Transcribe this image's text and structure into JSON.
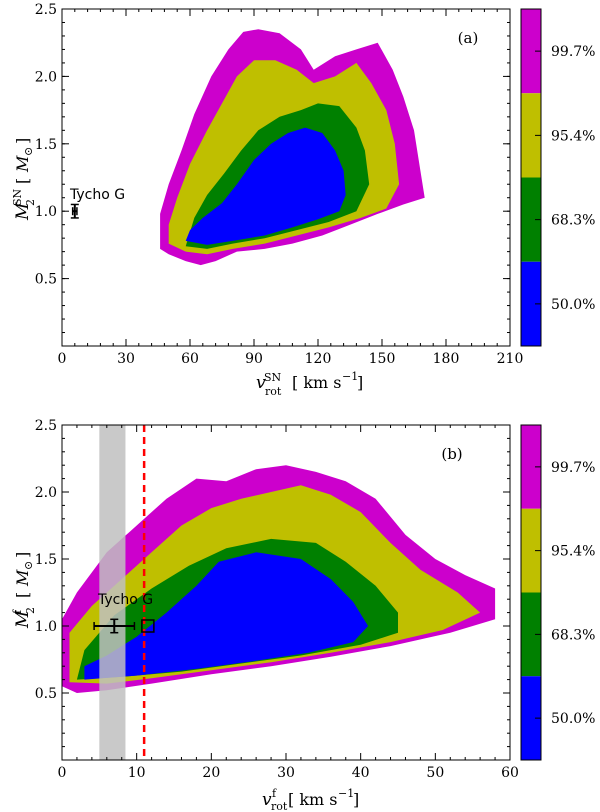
{
  "colors": {
    "c50": "#0000ff",
    "c68": "#008000",
    "c95": "#bfbf00",
    "c99": "#cc00cc",
    "marker": "#000000",
    "band": "#c0c0c0",
    "dashed": "#ff0000"
  },
  "chart_data": [
    {
      "type": "heatmap",
      "panel_label": "(a)",
      "xlabel": "v_rot^SN [ km s^-1 ]",
      "ylabel": "M_2^SN [ M_⊙ ]",
      "xlim": [
        0,
        210
      ],
      "ylim": [
        0,
        2.5
      ],
      "xticks": [
        "0",
        "30",
        "60",
        "90",
        "120",
        "150",
        "180",
        "210"
      ],
      "yticks": [
        "0.5",
        "1.0",
        "1.5",
        "2.0",
        "2.5"
      ],
      "colorbar": [
        "50.0%",
        "68.3%",
        "95.4%",
        "99.7%"
      ],
      "regions": {
        "99.7%": [
          [
            46,
            0.72
          ],
          [
            50,
            0.68
          ],
          [
            58,
            0.63
          ],
          [
            65,
            0.6
          ],
          [
            72,
            0.63
          ],
          [
            82,
            0.7
          ],
          [
            95,
            0.72
          ],
          [
            108,
            0.76
          ],
          [
            122,
            0.82
          ],
          [
            135,
            0.9
          ],
          [
            148,
            0.98
          ],
          [
            160,
            1.05
          ],
          [
            170,
            1.1
          ],
          [
            168,
            1.3
          ],
          [
            165,
            1.6
          ],
          [
            160,
            1.85
          ],
          [
            155,
            2.05
          ],
          [
            148,
            2.25
          ],
          [
            138,
            2.2
          ],
          [
            128,
            2.15
          ],
          [
            118,
            2.05
          ],
          [
            112,
            2.2
          ],
          [
            102,
            2.32
          ],
          [
            92,
            2.35
          ],
          [
            85,
            2.33
          ],
          [
            78,
            2.2
          ],
          [
            70,
            2.0
          ],
          [
            62,
            1.72
          ],
          [
            56,
            1.45
          ],
          [
            50,
            1.2
          ],
          [
            46,
            0.98
          ]
        ],
        "95.4%": [
          [
            50,
            0.76
          ],
          [
            58,
            0.7
          ],
          [
            68,
            0.68
          ],
          [
            80,
            0.72
          ],
          [
            95,
            0.76
          ],
          [
            110,
            0.82
          ],
          [
            125,
            0.88
          ],
          [
            140,
            0.95
          ],
          [
            152,
            1.02
          ],
          [
            158,
            1.2
          ],
          [
            156,
            1.5
          ],
          [
            152,
            1.75
          ],
          [
            145,
            1.95
          ],
          [
            138,
            2.1
          ],
          [
            128,
            2.0
          ],
          [
            118,
            1.95
          ],
          [
            110,
            2.05
          ],
          [
            100,
            2.12
          ],
          [
            90,
            2.12
          ],
          [
            82,
            2.0
          ],
          [
            75,
            1.8
          ],
          [
            68,
            1.6
          ],
          [
            60,
            1.35
          ],
          [
            54,
            1.1
          ],
          [
            50,
            0.9
          ]
        ],
        "68.3%": [
          [
            58,
            0.74
          ],
          [
            68,
            0.72
          ],
          [
            80,
            0.76
          ],
          [
            95,
            0.8
          ],
          [
            110,
            0.86
          ],
          [
            125,
            0.92
          ],
          [
            138,
            1.0
          ],
          [
            144,
            1.2
          ],
          [
            142,
            1.45
          ],
          [
            138,
            1.62
          ],
          [
            130,
            1.78
          ],
          [
            120,
            1.8
          ],
          [
            112,
            1.75
          ],
          [
            102,
            1.7
          ],
          [
            92,
            1.6
          ],
          [
            84,
            1.45
          ],
          [
            76,
            1.28
          ],
          [
            68,
            1.12
          ],
          [
            62,
            0.95
          ]
        ],
        "50.0%": [
          [
            58,
            0.78
          ],
          [
            68,
            0.75
          ],
          [
            80,
            0.78
          ],
          [
            95,
            0.82
          ],
          [
            108,
            0.88
          ],
          [
            120,
            0.94
          ],
          [
            130,
            1.0
          ],
          [
            133,
            1.12
          ],
          [
            132,
            1.3
          ],
          [
            128,
            1.45
          ],
          [
            122,
            1.58
          ],
          [
            114,
            1.62
          ],
          [
            106,
            1.58
          ],
          [
            98,
            1.5
          ],
          [
            90,
            1.38
          ],
          [
            82,
            1.2
          ],
          [
            75,
            1.06
          ],
          [
            66,
            0.95
          ],
          [
            60,
            0.86
          ]
        ]
      },
      "marker": {
        "label": "Tycho G",
        "x": 6,
        "y": 1.0,
        "xerr": 1,
        "yerr": 0.05
      }
    },
    {
      "type": "heatmap",
      "panel_label": "(b)",
      "xlabel": "v_rot^f [ km s^-1 ]",
      "ylabel": "M_2^f [ M_⊙ ]",
      "xlim": [
        0,
        60
      ],
      "ylim": [
        0,
        2.5
      ],
      "xticks": [
        "0",
        "10",
        "20",
        "30",
        "40",
        "50",
        "60"
      ],
      "yticks": [
        "0.5",
        "1.0",
        "1.5",
        "2.0",
        "2.5"
      ],
      "colorbar": [
        "50.0%",
        "68.3%",
        "95.4%",
        "99.7%"
      ],
      "regions": {
        "99.7%": [
          [
            0,
            0.55
          ],
          [
            2,
            0.5
          ],
          [
            6,
            0.52
          ],
          [
            12,
            0.57
          ],
          [
            20,
            0.64
          ],
          [
            28,
            0.7
          ],
          [
            36,
            0.77
          ],
          [
            44,
            0.85
          ],
          [
            52,
            0.95
          ],
          [
            58,
            1.05
          ],
          [
            58,
            1.28
          ],
          [
            54,
            1.38
          ],
          [
            50,
            1.5
          ],
          [
            46,
            1.68
          ],
          [
            42,
            1.95
          ],
          [
            38,
            2.08
          ],
          [
            34,
            2.15
          ],
          [
            30,
            2.2
          ],
          [
            26,
            2.17
          ],
          [
            22,
            2.08
          ],
          [
            18,
            2.1
          ],
          [
            14,
            1.95
          ],
          [
            10,
            1.75
          ],
          [
            6,
            1.55
          ],
          [
            2,
            1.25
          ],
          [
            0,
            1.05
          ]
        ],
        "95.4%": [
          [
            1,
            0.58
          ],
          [
            6,
            0.57
          ],
          [
            12,
            0.61
          ],
          [
            20,
            0.67
          ],
          [
            28,
            0.73
          ],
          [
            36,
            0.8
          ],
          [
            44,
            0.88
          ],
          [
            51,
            0.97
          ],
          [
            56,
            1.1
          ],
          [
            53,
            1.25
          ],
          [
            48,
            1.42
          ],
          [
            44,
            1.62
          ],
          [
            40,
            1.85
          ],
          [
            36,
            1.98
          ],
          [
            32,
            2.05
          ],
          [
            28,
            2.0
          ],
          [
            24,
            1.95
          ],
          [
            20,
            1.88
          ],
          [
            16,
            1.75
          ],
          [
            12,
            1.55
          ],
          [
            8,
            1.35
          ],
          [
            4,
            1.15
          ],
          [
            1,
            0.95
          ]
        ],
        "68.3%": [
          [
            2,
            0.6
          ],
          [
            8,
            0.62
          ],
          [
            16,
            0.66
          ],
          [
            24,
            0.72
          ],
          [
            32,
            0.78
          ],
          [
            40,
            0.86
          ],
          [
            45,
            0.95
          ],
          [
            45,
            1.1
          ],
          [
            42,
            1.3
          ],
          [
            38,
            1.48
          ],
          [
            34,
            1.62
          ],
          [
            28,
            1.65
          ],
          [
            22,
            1.58
          ],
          [
            17,
            1.45
          ],
          [
            12,
            1.28
          ],
          [
            7,
            1.08
          ],
          [
            3,
            0.82
          ]
        ],
        "50.0%": [
          [
            3,
            0.6
          ],
          [
            10,
            0.63
          ],
          [
            18,
            0.68
          ],
          [
            26,
            0.74
          ],
          [
            33,
            0.8
          ],
          [
            39,
            0.88
          ],
          [
            41,
            1.0
          ],
          [
            39,
            1.18
          ],
          [
            36,
            1.35
          ],
          [
            32,
            1.5
          ],
          [
            26,
            1.55
          ],
          [
            21,
            1.48
          ],
          [
            18,
            1.3
          ],
          [
            14,
            1.1
          ],
          [
            10,
            0.92
          ],
          [
            6,
            0.78
          ],
          [
            3,
            0.7
          ]
        ]
      },
      "shaded_band": [
        5,
        8.5
      ],
      "dashed_line_x": 11,
      "marker": {
        "label": "Tycho G",
        "x": 7,
        "y": 1.0,
        "xerr": 2.7,
        "yerr": 0.05
      },
      "square_marker": {
        "x": 11.5,
        "y": 1.0
      }
    }
  ]
}
